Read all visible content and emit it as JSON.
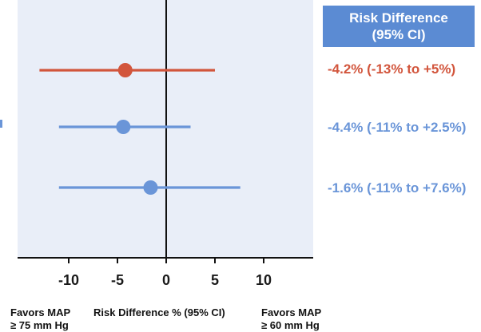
{
  "colors": {
    "panel_bg": "#e9eef8",
    "header_bg": "#5b8bd3",
    "red": "#d2553c",
    "blue": "#6a95d8",
    "axis": "#111111"
  },
  "header": {
    "line1": "Risk Difference",
    "line2": "(95% CI)"
  },
  "estimates": [
    "-4.2% (-13% to +5%)",
    "-4.4% (-11% to +2.5%)",
    "-1.6% (-11% to +7.6%)"
  ],
  "footer": {
    "left_line1": "Favors MAP",
    "left_line2": "≥ 75 mm Hg",
    "center": "Risk Difference % (95% CI)",
    "right_line1": "Favors MAP",
    "right_line2": "≥ 60 mm Hg"
  },
  "chart_data": {
    "type": "scatter",
    "title": "",
    "xlabel": "Risk Difference % (95% CI)",
    "ylabel": "",
    "xlim": [
      -15.5,
      15
    ],
    "xticks": [
      "-10",
      "-5",
      "0",
      "5",
      "10"
    ],
    "reference_line": 0,
    "grid": false,
    "series": [
      {
        "estimate": -4.2,
        "lower": -13,
        "upper": 5,
        "color": "#d2553c"
      },
      {
        "estimate": -4.4,
        "lower": -11,
        "upper": 2.5,
        "color": "#6a95d8"
      },
      {
        "estimate": -1.6,
        "lower": -11,
        "upper": 7.6,
        "color": "#6a95d8"
      }
    ]
  }
}
